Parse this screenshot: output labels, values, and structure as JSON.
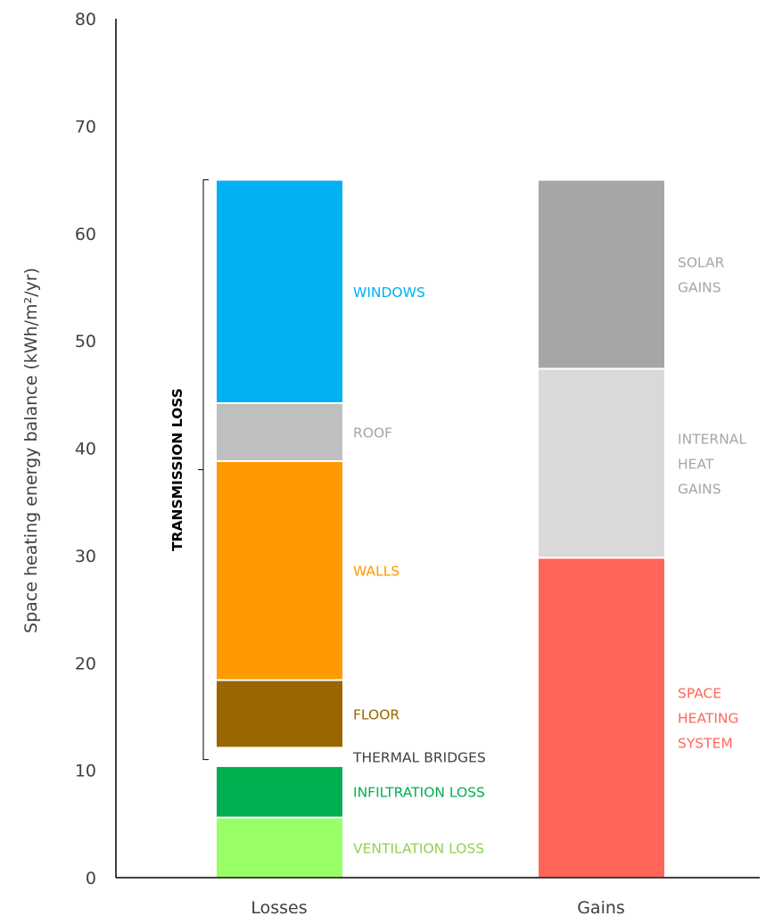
{
  "chart_data": {
    "type": "bar",
    "stacked": true,
    "ylabel": "Space heating energy balance (kWh/m²/yr)",
    "ylim": [
      0,
      80
    ],
    "yticks": [
      0,
      10,
      20,
      30,
      40,
      50,
      60,
      70,
      80
    ],
    "grid": false,
    "categories": [
      "Losses",
      "Gains"
    ],
    "stacks": [
      {
        "category": "Losses",
        "segments": [
          {
            "label": "VENTILATION LOSS",
            "value": 5.6,
            "color": "#99ff66",
            "label_color": "#92d050"
          },
          {
            "label": "INFILTRATION LOSS",
            "value": 4.8,
            "color": "#00b050",
            "label_color": "#00b050"
          },
          {
            "label": "THERMAL BRIDGES",
            "value": 1.7,
            "color": "#ffffff",
            "label_color": "#404040"
          },
          {
            "label": "FLOOR",
            "value": 6.3,
            "color": "#996600",
            "label_color": "#996600"
          },
          {
            "label": "WALLS",
            "value": 20.4,
            "color": "#ff9900",
            "label_color": "#ff9900"
          },
          {
            "label": "ROOF",
            "value": 5.4,
            "color": "#bfbfbf",
            "label_color": "#a6a6a6"
          },
          {
            "label": "WINDOWS",
            "value": 20.8,
            "color": "#00b0f0",
            "label_color": "#00b0f0"
          }
        ]
      },
      {
        "category": "Gains",
        "segments": [
          {
            "label": "SPACE HEATING SYSTEM",
            "lines": [
              "SPACE",
              "HEATING",
              "SYSTEM"
            ],
            "value": 29.8,
            "color": "#ff6659",
            "label_color": "#ff6659"
          },
          {
            "label": "INTERNAL HEAT GAINS",
            "lines": [
              "INTERNAL",
              "HEAT",
              "GAINS"
            ],
            "value": 17.6,
            "color": "#d9d9d9",
            "label_color": "#a6a6a6"
          },
          {
            "label": "SOLAR GAINS",
            "lines": [
              "SOLAR",
              "GAINS"
            ],
            "value": 17.6,
            "color": "#a6a6a6",
            "label_color": "#a6a6a6"
          }
        ]
      }
    ],
    "annotations": [
      {
        "text": "TRANSMISSION LOSS",
        "bracket_from": 11,
        "bracket_to": 65
      }
    ]
  }
}
